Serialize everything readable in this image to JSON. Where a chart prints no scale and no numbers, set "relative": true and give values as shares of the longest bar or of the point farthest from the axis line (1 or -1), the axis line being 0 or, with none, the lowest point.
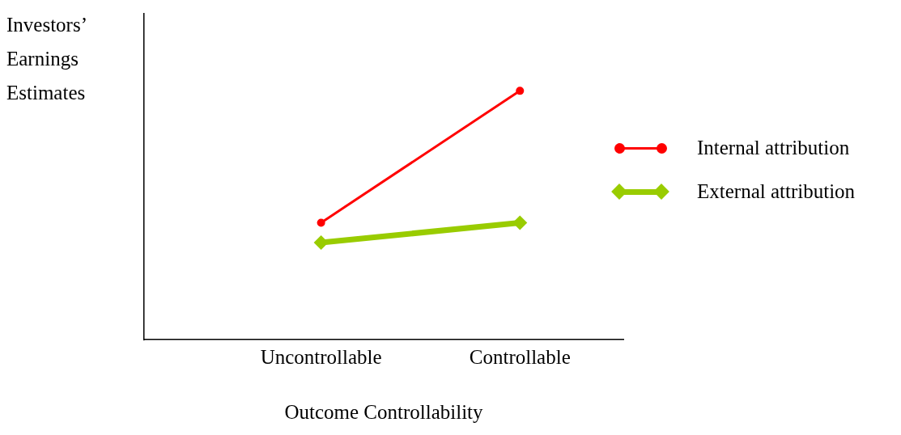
{
  "chart_data": {
    "type": "line",
    "relative": true,
    "xlabel": "Outcome Controllability",
    "ylabel": "Investors’ Earnings Estimates",
    "categories": [
      "Uncontrollable",
      "Controllable"
    ],
    "legend": "right",
    "grid": false,
    "series": [
      {
        "name": "Internal attribution",
        "color": "#ff0000",
        "marker": "circle",
        "values": [
          0.47,
          1
        ]
      },
      {
        "name": "External attribution",
        "color": "#99cc00",
        "marker": "diamond",
        "values": [
          0.39,
          0.47
        ]
      }
    ]
  }
}
